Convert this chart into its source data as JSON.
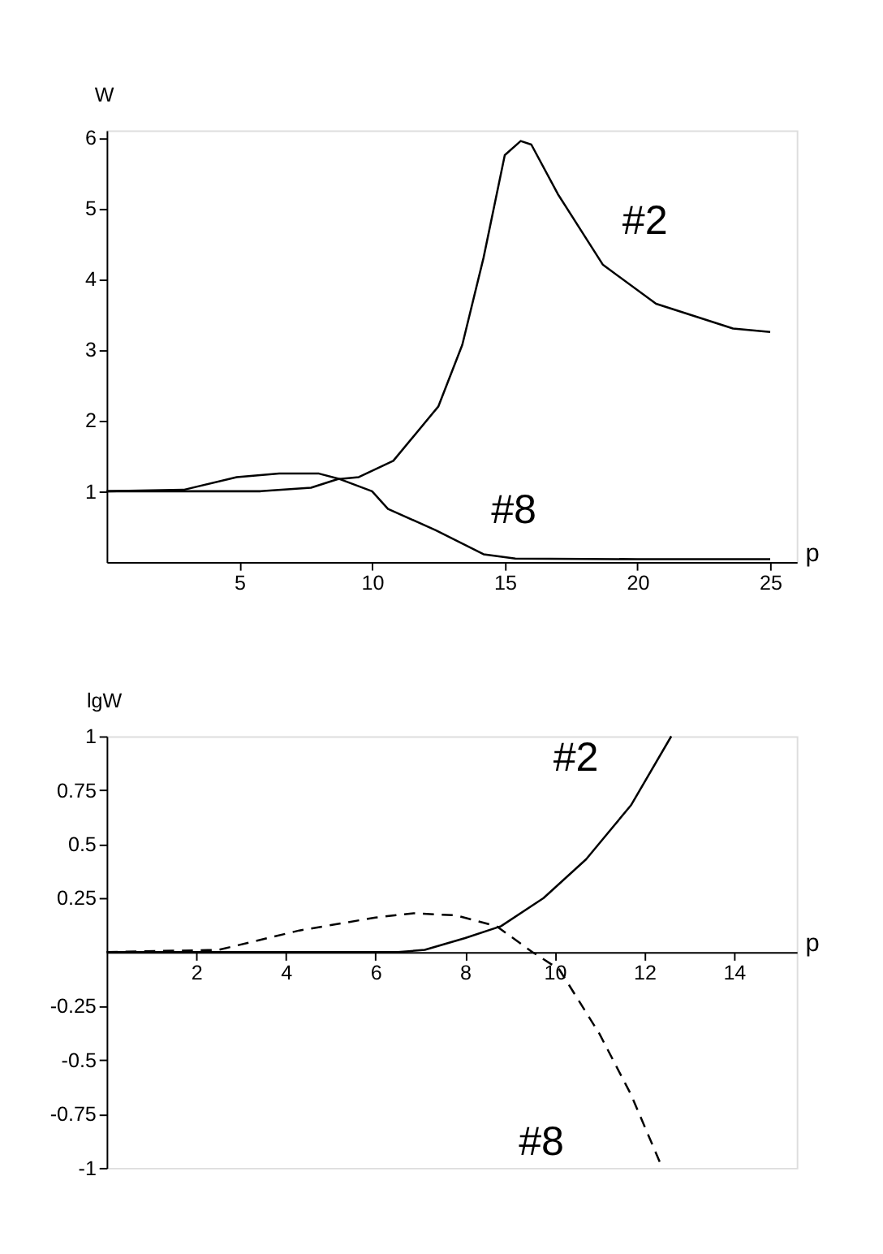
{
  "chart_data": [
    {
      "type": "line",
      "xlabel": "p",
      "ylabel": "W",
      "xlim": [
        0,
        26
      ],
      "ylim": [
        0,
        6.1
      ],
      "xticks": [
        5,
        10,
        15,
        20,
        25
      ],
      "yticks": [
        1,
        2,
        3,
        4,
        5,
        6
      ],
      "grid": false,
      "legend": false,
      "marker": "none",
      "series": [
        {
          "color": "#000000",
          "line_style": "solid",
          "x": [
            0,
            3,
            5.8,
            7.7,
            8.7,
            9.5,
            10.8,
            12.5,
            13.4,
            14.2,
            15,
            15.6,
            16,
            17,
            18.7,
            20.7,
            23.6,
            25
          ],
          "values": [
            1,
            1,
            1,
            1.05,
            1.17,
            1.2,
            1.43,
            2.2,
            3.07,
            4.3,
            5.75,
            5.95,
            5.9,
            5.2,
            4.2,
            3.65,
            3.3,
            3.25
          ]
        },
        {
          "color": "#000000",
          "line_style": "solid",
          "x": [
            0,
            2.9,
            4.9,
            6.5,
            8,
            8.8,
            10,
            10.6,
            12.4,
            14.2,
            15.4,
            20,
            25
          ],
          "values": [
            1,
            1.02,
            1.2,
            1.25,
            1.25,
            1.17,
            1,
            0.75,
            0.45,
            0.11,
            0.05,
            0.04,
            0.04
          ]
        }
      ],
      "annotations": [
        "#2",
        "#8"
      ]
    },
    {
      "type": "line",
      "xlabel": "p",
      "ylabel": "lgW",
      "xlim": [
        0,
        15.4
      ],
      "ylim": [
        -1,
        1
      ],
      "xticks": [
        2,
        4,
        6,
        8,
        10,
        12,
        14
      ],
      "yticks": [
        -1,
        -0.75,
        -0.5,
        -0.25,
        0.25,
        0.5,
        0.75,
        1
      ],
      "grid": false,
      "legend": false,
      "marker": "none",
      "series": [
        {
          "color": "#000000",
          "line_style": "solid",
          "x": [
            0,
            3,
            6.5,
            7.1,
            8,
            8.8,
            9.75,
            10.7,
            11.7,
            12.6
          ],
          "values": [
            0,
            0,
            0,
            0.01,
            0.065,
            0.12,
            0.25,
            0.43,
            0.68,
            1.0
          ]
        },
        {
          "color": "#000000",
          "line_style": "dashed",
          "x": [
            0,
            2.5,
            4.3,
            6,
            6.85,
            7.8,
            8.7,
            9.5,
            10.1,
            11,
            11.7,
            12.4
          ],
          "values": [
            0,
            0.01,
            0.1,
            0.16,
            0.18,
            0.17,
            0.12,
            0,
            -0.08,
            -0.38,
            -0.66,
            -1.0
          ]
        }
      ],
      "annotations": [
        "#2",
        "#8"
      ]
    }
  ]
}
